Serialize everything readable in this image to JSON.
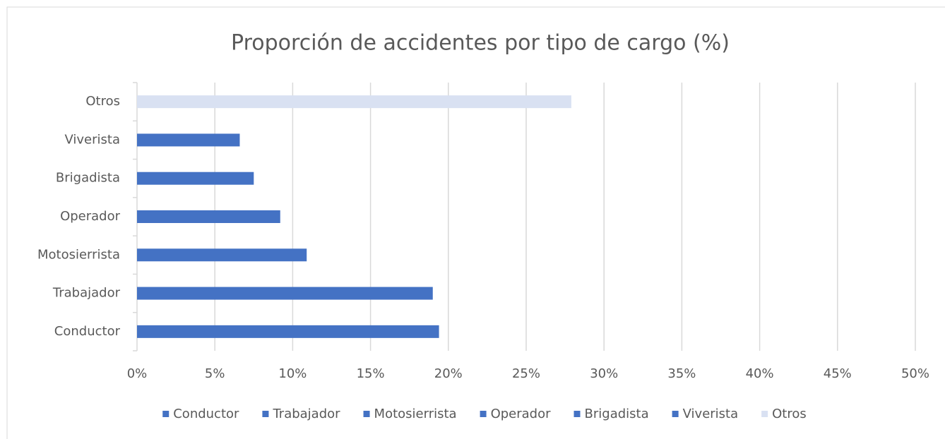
{
  "chart_data": {
    "type": "barh",
    "title": "Proporción de accidentes por tipo de cargo (%)",
    "categories": [
      "Conductor",
      "Trabajador",
      "Motosierrista",
      "Operador",
      "Brigadista",
      "Viverista",
      "Otros"
    ],
    "values": [
      19.4,
      19.0,
      10.9,
      9.2,
      7.5,
      6.6,
      27.9
    ],
    "colors": [
      "#4472c4",
      "#4472c4",
      "#4472c4",
      "#4472c4",
      "#4472c4",
      "#4472c4",
      "#d9e1f2"
    ],
    "xlim": [
      0,
      50
    ],
    "xticks": [
      {
        "value": 0,
        "label": "0%"
      },
      {
        "value": 5,
        "label": "5%"
      },
      {
        "value": 10,
        "label": "10%"
      },
      {
        "value": 15,
        "label": "15%"
      },
      {
        "value": 20,
        "label": "20%"
      },
      {
        "value": 25,
        "label": "25%"
      },
      {
        "value": 30,
        "label": "30%"
      },
      {
        "value": 35,
        "label": "35%"
      },
      {
        "value": 40,
        "label": "40%"
      },
      {
        "value": 45,
        "label": "45%"
      },
      {
        "value": 50,
        "label": "50%"
      }
    ],
    "grid": true,
    "legend": "bottom"
  }
}
